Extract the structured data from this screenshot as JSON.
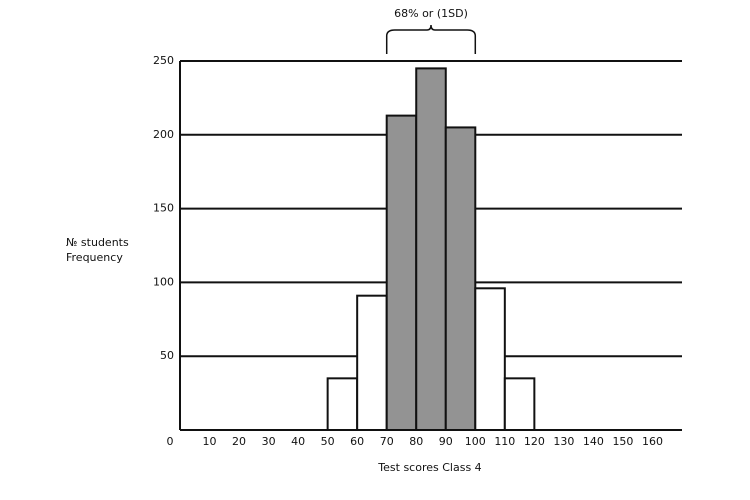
{
  "chart_data": {
    "type": "histogram",
    "xlabel": "Test scores Class 4",
    "ylabel": [
      "№ students",
      "Frequency"
    ],
    "bins": [
      50,
      60,
      70,
      80,
      90,
      100,
      110,
      120
    ],
    "counts": [
      35,
      91,
      213,
      245,
      205,
      96,
      35
    ],
    "colors": [
      "#ffffff",
      "#ffffff",
      "#939393",
      "#939393",
      "#939393",
      "#ffffff",
      "#ffffff"
    ],
    "xlim": [
      0,
      170
    ],
    "xticks": [
      0,
      10,
      20,
      30,
      40,
      50,
      60,
      70,
      80,
      90,
      100,
      110,
      120,
      130,
      140,
      150,
      160
    ],
    "ylim": [
      0,
      250
    ],
    "yticks": [
      50,
      100,
      150,
      200,
      250
    ],
    "grid": true,
    "annotation": {
      "text": "68% or (1SD)",
      "x": [
        70,
        100
      ]
    }
  }
}
